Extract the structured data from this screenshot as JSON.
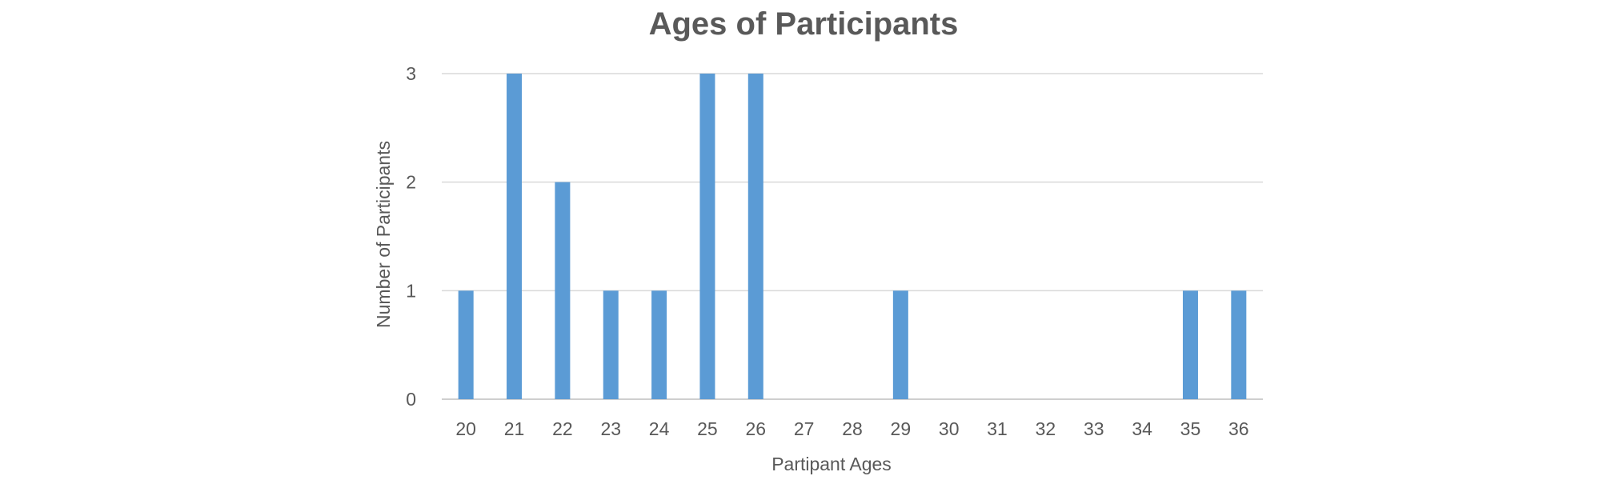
{
  "chart_data": {
    "type": "bar",
    "title": "Ages of Participants",
    "xlabel": "Partipant Ages",
    "ylabel": "Number of Participants",
    "categories": [
      "20",
      "21",
      "22",
      "23",
      "24",
      "25",
      "26",
      "27",
      "28",
      "29",
      "30",
      "31",
      "32",
      "33",
      "34",
      "35",
      "36"
    ],
    "values": [
      1,
      3,
      2,
      1,
      1,
      3,
      3,
      0,
      0,
      1,
      0,
      0,
      0,
      0,
      0,
      1,
      1
    ],
    "ylim": [
      0,
      3
    ],
    "yticks": [
      "0",
      "1",
      "2",
      "3"
    ],
    "grid": true,
    "legend": "none",
    "bar_color": "#5b9bd5"
  }
}
